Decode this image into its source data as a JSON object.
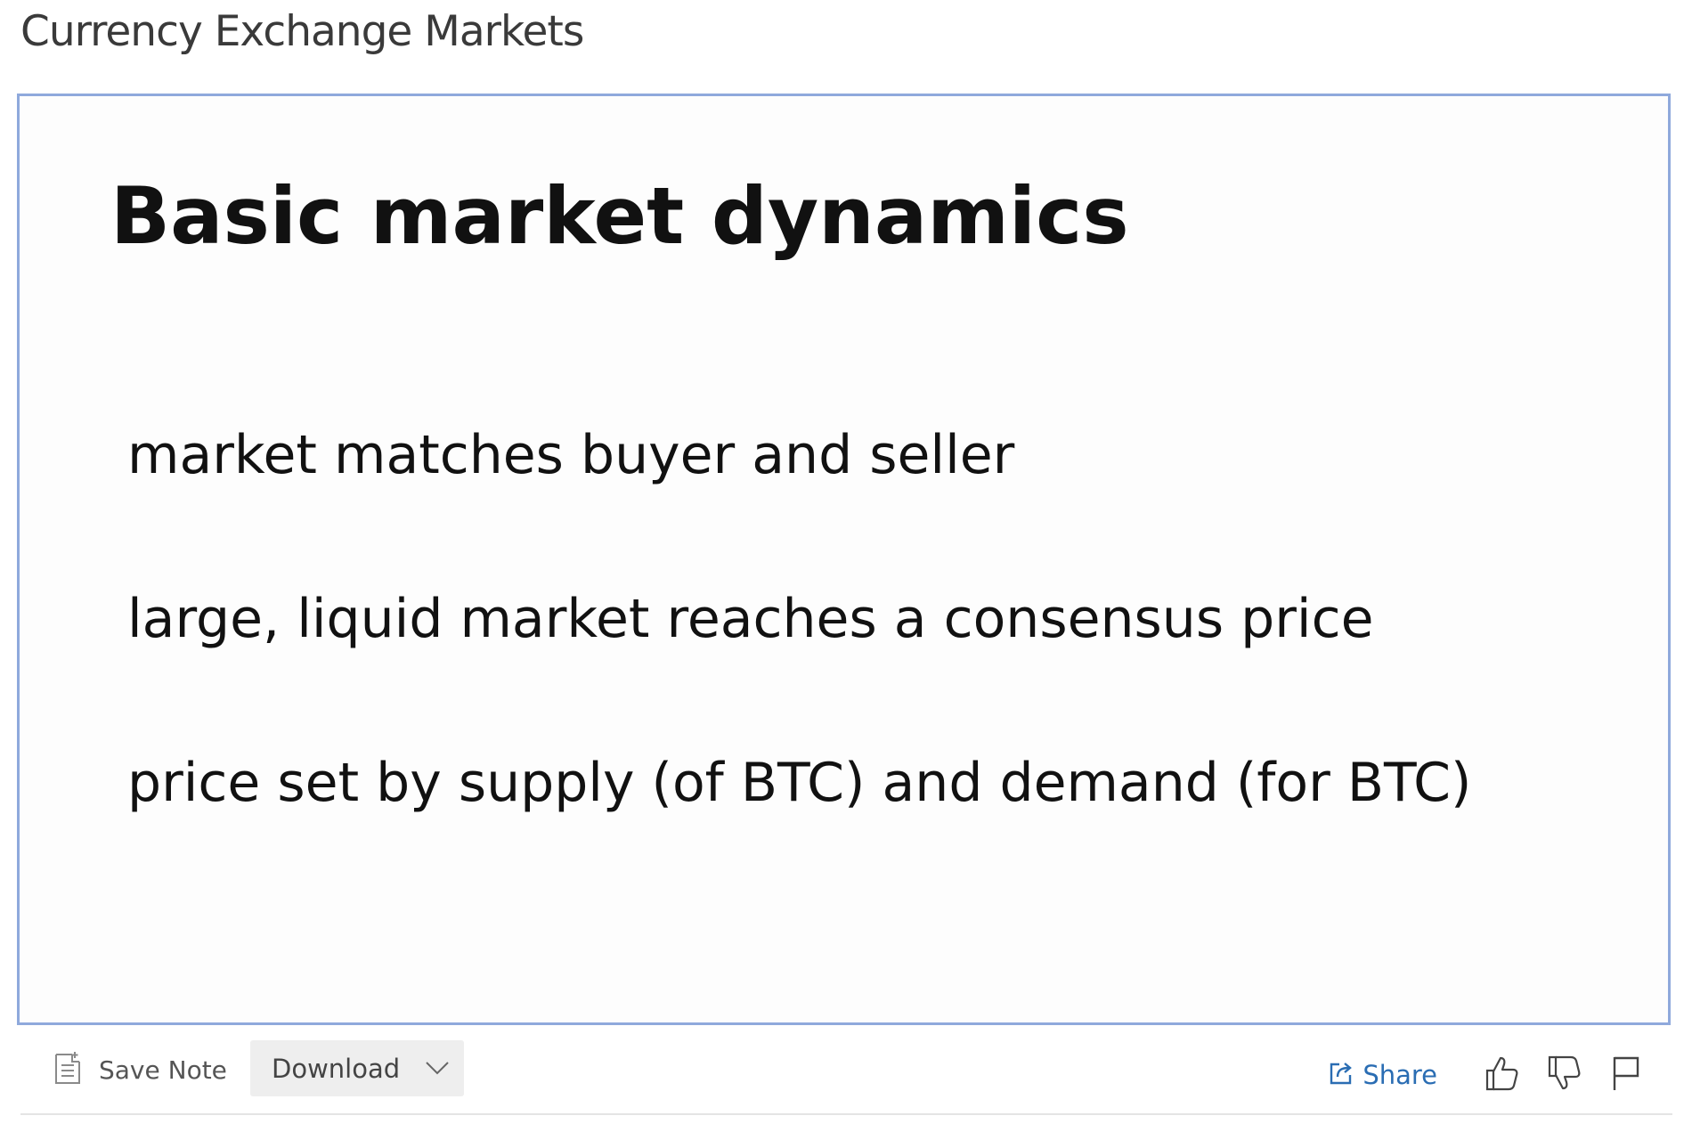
{
  "page": {
    "title": "Currency Exchange Markets"
  },
  "slide": {
    "heading": "Basic market dynamics",
    "bullets": [
      "market matches buyer and seller",
      "large, liquid market reaches a consensus price",
      "price set by supply (of BTC) and demand (for BTC)"
    ]
  },
  "toolbar": {
    "save_note_label": "Save Note",
    "save_note_icon": "note-icon",
    "download_label": "Download",
    "download_icon": "chevron-down-icon",
    "share_label": "Share",
    "share_icon": "share-icon",
    "like_icon": "thumbs-up-icon",
    "dislike_icon": "thumbs-down-icon",
    "flag_icon": "flag-icon"
  },
  "colors": {
    "frame_border": "#8fa9dc",
    "share_link": "#2a6db3",
    "download_bg": "#eeeeee"
  }
}
